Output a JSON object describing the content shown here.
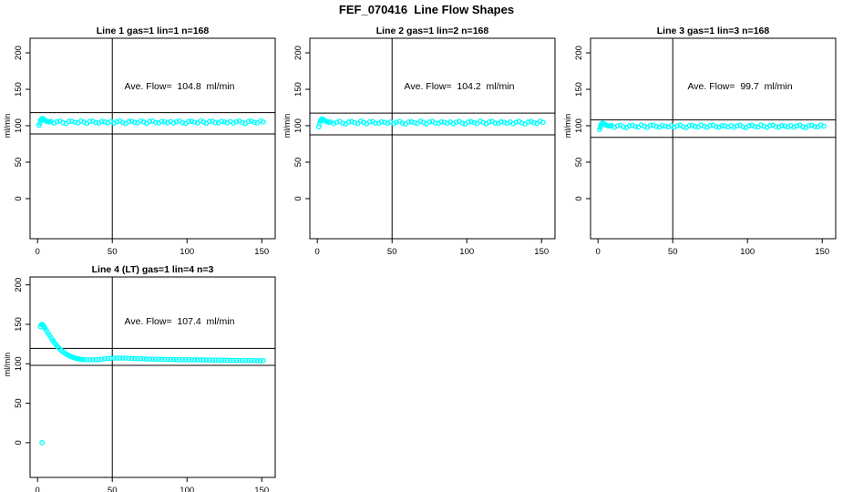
{
  "colors": {
    "points": "#00FFFF",
    "axis": "#000000",
    "background": "#FFFFFF"
  },
  "chart_data": {
    "type": "scatter",
    "title": "FEF_070416  Line Flow Shapes",
    "marker": "open-circle",
    "xlim": [
      -5,
      159
    ],
    "x_ticks": [
      0,
      50,
      100,
      150
    ],
    "y_ticks": [
      0,
      50,
      100,
      150,
      200
    ],
    "grid": false,
    "annotation_anchor": {
      "x": 95,
      "y": 152
    },
    "panels": [
      {
        "title": "Line 1 gas=1 lin=1 n=168",
        "annotation": "Ave. Flow=  104.8  ml/min",
        "ave_flow": 104.8,
        "n": 168,
        "ylabel": "ml/min",
        "ylim": [
          -55,
          220
        ],
        "vline_x": 50,
        "hlines": [
          88.8,
          118.0
        ],
        "series": {
          "head": [
            [
              1,
              100.5
            ],
            [
              1.5,
              103.5
            ],
            [
              2,
              107.5
            ],
            [
              2.5,
              109
            ],
            [
              3,
              110
            ],
            [
              3.5,
              109.6
            ],
            [
              4,
              109
            ],
            [
              4.5,
              108.2
            ],
            [
              5,
              107.4
            ],
            [
              5.5,
              106.8
            ],
            [
              6,
              106.2
            ],
            [
              7,
              105.6
            ],
            [
              8,
              105.2
            ]
          ],
          "x_start": 9,
          "x_step": 2,
          "y": [
            105.9,
            103.6,
            105.4,
            106.6,
            104.2,
            103.1,
            105.7,
            106.2,
            104.7,
            103.9,
            106.8,
            105.1,
            103.4,
            105.8,
            106.4,
            104.4,
            103.8,
            106.0,
            105.3,
            104.1,
            105.9,
            103.6,
            105.4,
            106.6,
            104.2,
            103.1,
            105.7,
            106.2,
            104.7,
            103.9,
            106.8,
            105.1,
            103.4,
            105.8,
            106.4,
            104.4,
            103.8,
            106.0,
            105.3,
            104.1,
            105.9,
            103.6,
            105.4,
            106.6,
            104.2,
            103.1,
            105.7,
            106.2,
            104.7,
            103.9,
            106.8,
            105.1,
            103.4,
            105.8,
            106.4,
            104.4,
            103.8,
            106.0,
            105.3,
            104.1,
            105.9,
            103.6,
            105.4,
            106.6,
            104.2,
            103.1,
            105.7,
            106.2,
            104.7,
            103.9,
            106.8,
            105.1
          ]
        },
        "outliers": []
      },
      {
        "title": "Line 2 gas=1 lin=2 n=168",
        "annotation": "Ave. Flow=  104.2  ml/min",
        "ave_flow": 104.2,
        "n": 168,
        "ylabel": "ml/min",
        "ylim": [
          -55,
          220
        ],
        "vline_x": 50,
        "hlines": [
          87.5,
          117.3
        ],
        "series": {
          "head": [
            [
              1,
              98.5
            ],
            [
              1.5,
              103
            ],
            [
              2,
              106.5
            ],
            [
              2.5,
              108
            ],
            [
              3,
              109.3
            ],
            [
              3.5,
              109
            ],
            [
              4,
              108.4
            ],
            [
              4.5,
              107.6
            ],
            [
              5,
              106.9
            ],
            [
              6,
              105.9
            ],
            [
              7,
              105.1
            ],
            [
              8,
              104.7
            ]
          ],
          "x_start": 9,
          "x_step": 2,
          "y": [
            105.3,
            103.0,
            104.8,
            106.0,
            103.6,
            102.5,
            105.1,
            105.6,
            104.1,
            103.3,
            106.2,
            104.5,
            102.8,
            105.2,
            105.8,
            103.8,
            103.2,
            105.4,
            104.7,
            103.5,
            105.3,
            103.0,
            104.8,
            106.0,
            103.6,
            102.5,
            105.1,
            105.6,
            104.1,
            103.3,
            106.2,
            104.5,
            102.8,
            105.2,
            105.8,
            103.8,
            103.2,
            105.4,
            104.7,
            103.5,
            105.3,
            103.0,
            104.8,
            106.0,
            103.6,
            102.5,
            105.1,
            105.6,
            104.1,
            103.3,
            106.2,
            104.5,
            102.8,
            105.2,
            105.8,
            103.8,
            103.2,
            105.4,
            104.7,
            103.5,
            105.3,
            103.0,
            104.8,
            106.0,
            103.6,
            102.5,
            105.1,
            105.6,
            104.1,
            103.3,
            106.2,
            104.5
          ]
        },
        "outliers": []
      },
      {
        "title": "Line 3 gas=1 lin=3 n=168",
        "annotation": "Ave. Flow=  99.7  ml/min",
        "ave_flow": 99.7,
        "n": 168,
        "ylabel": "ml/min",
        "ylim": [
          -55,
          220
        ],
        "vline_x": 50,
        "hlines": [
          84.0,
          108.0
        ],
        "series": {
          "head": [
            [
              1,
              94.8
            ],
            [
              1.5,
              98
            ],
            [
              2,
              101
            ],
            [
              2.5,
              102.5
            ],
            [
              3,
              103.6
            ],
            [
              3.5,
              103.3
            ],
            [
              4,
              102.7
            ],
            [
              4.5,
              102
            ],
            [
              5,
              101.3
            ],
            [
              6,
              100.5
            ],
            [
              7,
              99.9
            ],
            [
              8,
              99.5
            ]
          ],
          "x_start": 9,
          "x_step": 2,
          "y": [
            100.2,
            97.9,
            99.7,
            100.9,
            98.5,
            97.4,
            100.0,
            100.5,
            99.0,
            98.2,
            101.1,
            99.4,
            97.7,
            100.1,
            100.7,
            98.7,
            98.1,
            100.3,
            99.6,
            98.4,
            100.2,
            97.9,
            99.7,
            100.9,
            98.5,
            97.4,
            100.0,
            100.5,
            99.0,
            98.2,
            101.1,
            99.4,
            97.7,
            100.1,
            100.7,
            98.7,
            98.1,
            100.3,
            99.6,
            98.4,
            100.2,
            97.9,
            99.7,
            100.9,
            98.5,
            97.4,
            100.0,
            100.5,
            99.0,
            98.2,
            101.1,
            99.4,
            97.7,
            100.1,
            100.7,
            98.7,
            98.1,
            100.3,
            99.6,
            98.4,
            100.2,
            97.9,
            99.7,
            100.9,
            98.5,
            97.4,
            100.0,
            100.5,
            99.0,
            98.2,
            101.1,
            99.4
          ]
        },
        "outliers": []
      },
      {
        "title": "Line 4 (LT) gas=1 lin=4 n=3",
        "annotation": "Ave. Flow=  107.4  ml/min",
        "ave_flow": 107.4,
        "n": 3,
        "ylabel": "ml/min",
        "ylim": [
          -44,
          210
        ],
        "vline_x": 50,
        "hlines": [
          98.0,
          119.5
        ],
        "series": {
          "head": [
            [
              2,
              147
            ],
            [
              2.5,
              149.5
            ],
            [
              3,
              150
            ],
            [
              3.5,
              149
            ],
            [
              4,
              148
            ],
            [
              4.5,
              146.5
            ],
            [
              5,
              145
            ],
            [
              6,
              142
            ],
            [
              7,
              139
            ],
            [
              8,
              136
            ],
            [
              9,
              133
            ],
            [
              10,
              130
            ],
            [
              11,
              127.5
            ],
            [
              12,
              125
            ],
            [
              13,
              122.5
            ],
            [
              14,
              120.5
            ],
            [
              15,
              118.5
            ],
            [
              16,
              116.8
            ],
            [
              17,
              115.2
            ],
            [
              18,
              113.8
            ],
            [
              19,
              112.5
            ],
            [
              20,
              111.4
            ],
            [
              21,
              110.4
            ],
            [
              22,
              109.5
            ],
            [
              23,
              108.7
            ],
            [
              24,
              108.0
            ],
            [
              25,
              107.4
            ],
            [
              26,
              106.9
            ],
            [
              27,
              106.5
            ],
            [
              28,
              106.1
            ],
            [
              29,
              105.8
            ],
            [
              30,
              105.5
            ]
          ],
          "x_start": 31,
          "x_step": 2,
          "y": [
            105.3,
            105.1,
            105.0,
            105.0,
            105.2,
            105.5,
            105.9,
            106.3,
            106.7,
            107.0,
            107.2,
            107.3,
            107.3,
            107.2,
            107.1,
            107.0,
            106.8,
            106.7,
            106.5,
            106.4,
            106.3,
            106.1,
            106.0,
            105.9,
            105.8,
            105.7,
            105.6,
            105.6,
            105.5,
            105.4,
            105.4,
            105.3,
            105.3,
            105.2,
            105.2,
            105.1,
            105.1,
            105.0,
            105.0,
            104.9,
            104.9,
            104.8,
            104.8,
            104.7,
            104.7,
            104.6,
            104.6,
            104.5,
            104.5,
            104.4,
            104.4,
            104.3,
            104.3,
            104.2,
            104.2,
            104.1,
            104.1,
            104.0,
            104.0,
            103.9,
            103.9
          ]
        },
        "outliers": [
          [
            3,
            0
          ]
        ]
      }
    ]
  }
}
